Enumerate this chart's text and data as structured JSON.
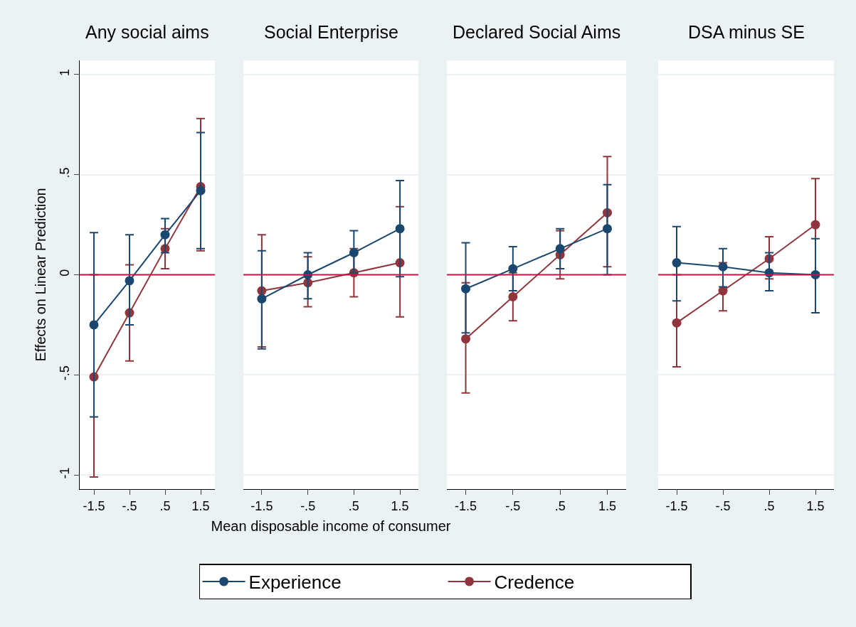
{
  "chart_data": [
    {
      "type": "line",
      "title": "Any social aims",
      "ylabel": "Effects on Linear Prediction",
      "x": [
        -1.5,
        -0.5,
        0.5,
        1.5
      ],
      "xlim": [
        -1.9,
        1.9
      ],
      "xticks": [
        {
          "value": -1.5,
          "label": "-1.5"
        },
        {
          "value": -0.5,
          "label": "-.5"
        },
        {
          "value": 0.5,
          "label": ".5"
        },
        {
          "value": 1.5,
          "label": "1.5"
        }
      ],
      "ylim": [
        -1.07,
        1.07
      ],
      "yticks": [
        {
          "value": -1,
          "label": "-1"
        },
        {
          "value": -0.5,
          "label": "-.5"
        },
        0,
        {
          "value": 0.5,
          "label": ".5"
        },
        1
      ],
      "grid": "y",
      "legend": "bottom",
      "marker": "circle",
      "line_style": "solid",
      "ref_lines": [
        {
          "axis": "y",
          "value": 0,
          "color": "#cc1046"
        }
      ],
      "series": [
        {
          "name": "Experience",
          "color": "#1a476f",
          "values": [
            -0.25,
            -0.03,
            0.2,
            0.42
          ],
          "errors": [
            [
              -0.71,
              0.21
            ],
            [
              -0.25,
              0.2
            ],
            [
              0.11,
              0.28
            ],
            [
              0.13,
              0.71
            ]
          ]
        },
        {
          "name": "Credence",
          "color": "#90353b",
          "values": [
            -0.51,
            -0.19,
            0.13,
            0.44
          ],
          "errors": [
            [
              -1.01,
              0.0
            ],
            [
              -0.43,
              0.05
            ],
            [
              0.03,
              0.23
            ],
            [
              0.12,
              0.78
            ]
          ]
        }
      ]
    },
    {
      "type": "line",
      "title": "Social Enterprise",
      "xlabel": "Mean disposable income of consumer",
      "x": [
        -1.5,
        -0.5,
        0.5,
        1.5
      ],
      "xlim": [
        -1.9,
        1.9
      ],
      "xticks": [
        {
          "value": -1.5,
          "label": "-1.5"
        },
        {
          "value": -0.5,
          "label": "-.5"
        },
        {
          "value": 0.5,
          "label": ".5"
        },
        {
          "value": 1.5,
          "label": "1.5"
        }
      ],
      "ylim": [
        -1.07,
        1.07
      ],
      "yticks": [
        -1,
        -0.5,
        0.5,
        1
      ],
      "tick_labels": "x",
      "grid": "y",
      "marker": "circle",
      "line_style": "solid",
      "ref_lines": [
        {
          "axis": "y",
          "value": 0,
          "color": "#cc1046"
        }
      ],
      "series": [
        {
          "color": "#1a476f",
          "values": [
            -0.12,
            0.0,
            0.11,
            0.23
          ],
          "errors": [
            [
              -0.37,
              0.12
            ],
            [
              -0.12,
              0.11
            ],
            [
              0.01,
              0.22
            ],
            [
              -0.01,
              0.47
            ]
          ]
        },
        {
          "color": "#90353b",
          "values": [
            -0.08,
            -0.04,
            0.01,
            0.06
          ],
          "errors": [
            [
              -0.36,
              0.2
            ],
            [
              -0.16,
              0.09
            ],
            [
              -0.11,
              0.13
            ],
            [
              -0.21,
              0.34
            ]
          ]
        }
      ]
    },
    {
      "type": "line",
      "title": "Declared Social Aims",
      "x": [
        -1.5,
        -0.5,
        0.5,
        1.5
      ],
      "xlim": [
        -1.9,
        1.9
      ],
      "xticks": [
        {
          "value": -1.5,
          "label": "-1.5"
        },
        {
          "value": -0.5,
          "label": "-.5"
        },
        {
          "value": 0.5,
          "label": ".5"
        },
        {
          "value": 1.5,
          "label": "1.5"
        }
      ],
      "ylim": [
        -1.07,
        1.07
      ],
      "yticks": [
        -1,
        -0.5,
        0.5,
        1
      ],
      "tick_labels": "x",
      "grid": "y",
      "marker": "circle",
      "line_style": "solid",
      "ref_lines": [
        {
          "axis": "y",
          "value": 0,
          "color": "#cc1046"
        }
      ],
      "series": [
        {
          "color": "#1a476f",
          "values": [
            -0.07,
            0.03,
            0.13,
            0.23
          ],
          "errors": [
            [
              -0.29,
              0.16
            ],
            [
              -0.08,
              0.14
            ],
            [
              0.03,
              0.23
            ],
            [
              0.0,
              0.45
            ]
          ]
        },
        {
          "color": "#90353b",
          "values": [
            -0.32,
            -0.11,
            0.1,
            0.31
          ],
          "errors": [
            [
              -0.59,
              -0.04
            ],
            [
              -0.23,
              0.01
            ],
            [
              -0.02,
              0.22
            ],
            [
              0.04,
              0.59
            ]
          ]
        }
      ]
    },
    {
      "type": "line",
      "title": "DSA minus SE",
      "x": [
        -1.5,
        -0.5,
        0.5,
        1.5
      ],
      "xlim": [
        -1.9,
        1.9
      ],
      "xticks": [
        {
          "value": -1.5,
          "label": "-1.5"
        },
        {
          "value": -0.5,
          "label": "-.5"
        },
        {
          "value": 0.5,
          "label": ".5"
        },
        {
          "value": 1.5,
          "label": "1.5"
        }
      ],
      "ylim": [
        -1.07,
        1.07
      ],
      "yticks": [
        -1,
        -0.5,
        0.5,
        1
      ],
      "tick_labels": "x",
      "grid": "y",
      "marker": "circle",
      "line_style": "solid",
      "ref_lines": [
        {
          "axis": "y",
          "value": 0,
          "color": "#cc1046"
        }
      ],
      "series": [
        {
          "color": "#1a476f",
          "values": [
            0.06,
            0.04,
            0.01,
            0.0
          ],
          "errors": [
            [
              -0.13,
              0.24
            ],
            [
              -0.06,
              0.13
            ],
            [
              -0.08,
              0.11
            ],
            [
              -0.19,
              0.18
            ]
          ]
        },
        {
          "color": "#90353b",
          "values": [
            -0.24,
            -0.08,
            0.08,
            0.25
          ],
          "errors": [
            [
              -0.46,
              0.0
            ],
            [
              -0.18,
              0.06
            ],
            [
              -0.02,
              0.19
            ],
            [
              0.01,
              0.48
            ]
          ]
        }
      ]
    }
  ]
}
